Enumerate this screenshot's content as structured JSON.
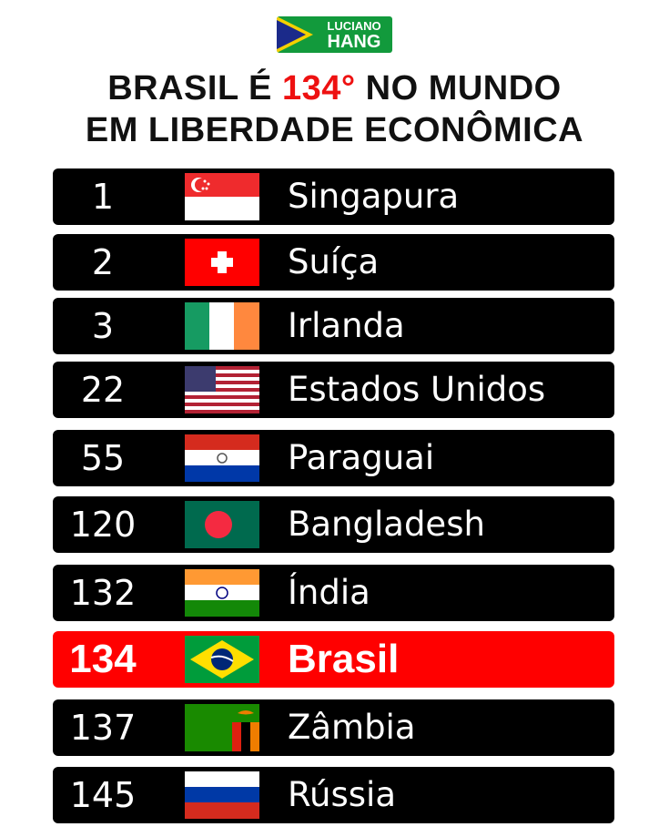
{
  "logo": {
    "line1": "LUCIANO",
    "line2": "HANG"
  },
  "title": {
    "before": "BRASIL É",
    "highlight": "134°",
    "after": "NO MUNDO",
    "line2": "EM LIBERDADE ECONÔMICA"
  },
  "rows": [
    {
      "rank": 1,
      "country": "Singapura",
      "color": "#000000"
    },
    {
      "rank": 2,
      "country": "Suíça",
      "color": "#000000"
    },
    {
      "rank": 3,
      "country": "Irlanda",
      "color": "#000000"
    },
    {
      "rank": 22,
      "country": "Estados Unidos",
      "color": "#000000"
    },
    {
      "rank": 55,
      "country": "Paraguai",
      "color": "#000000"
    },
    {
      "rank": 120,
      "country": "Bangladesh",
      "color": "#000000"
    },
    {
      "rank": 132,
      "country": "Índia",
      "color": "#000000"
    },
    {
      "rank": 134,
      "country": "Brasil",
      "color": "#ff0000"
    },
    {
      "rank": 137,
      "country": "Zâmbia",
      "color": "#000000"
    },
    {
      "rank": 145,
      "country": "Rússia",
      "color": "#000000"
    }
  ]
}
